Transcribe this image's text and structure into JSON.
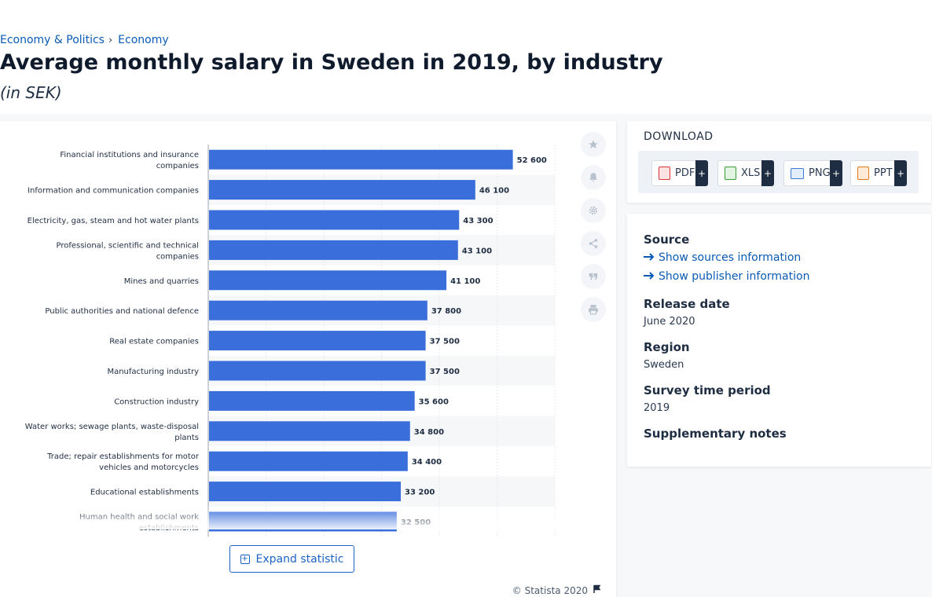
{
  "breadcrumb": {
    "item1": "Economy & Politics",
    "separator": "›",
    "item2": "Economy"
  },
  "title": "Average monthly salary in Sweden in 2019, by industry",
  "subtitle": "(in SEK)",
  "chart_data": {
    "type": "bar",
    "orientation": "horizontal",
    "categories": [
      [
        "Financial institutions and insurance",
        "companies"
      ],
      [
        "Information and communication companies"
      ],
      [
        "Electricity, gas, steam and hot water plants"
      ],
      [
        "Professional, scientific and technical",
        "companies"
      ],
      [
        "Mines and quarries"
      ],
      [
        "Public authorities and national defence"
      ],
      [
        "Real estate companies"
      ],
      [
        "Manufacturing industry"
      ],
      [
        "Construction industry"
      ],
      [
        "Water works; sewage plants, waste-disposal",
        "plants"
      ],
      [
        "Trade; repair establishments for motor",
        "vehicles and motorcycles"
      ],
      [
        "Educational establishments"
      ],
      [
        "Human health and social work",
        "establishments"
      ]
    ],
    "values": [
      52600,
      46100,
      43300,
      43100,
      41100,
      37800,
      37500,
      37500,
      35600,
      34800,
      34400,
      33200,
      32500
    ],
    "data_labels": [
      "52 600",
      "46 100",
      "43 300",
      "43 100",
      "41 100",
      "37 800",
      "37 500",
      "37 500",
      "35 600",
      "34 800",
      "34 400",
      "33 200",
      "32 500"
    ],
    "xlim": [
      0,
      60000
    ],
    "grid": true,
    "bar_color": "#3a6fdb"
  },
  "expand_label": "Expand statistic",
  "copyright": "© Statista 2020",
  "download": {
    "title": "DOWNLOAD",
    "pdf": "PDF",
    "xls": "XLS",
    "png": "PNG",
    "ppt": "PPT",
    "plus": "+"
  },
  "info": {
    "source_label": "Source",
    "sources_link": "Show sources information",
    "publisher_link": "Show publisher information",
    "release_label": "Release date",
    "release_value": "June 2020",
    "region_label": "Region",
    "region_value": "Sweden",
    "period_label": "Survey time period",
    "period_value": "2019",
    "notes_label": "Supplementary notes"
  },
  "tools": [
    "star-icon",
    "bell-icon",
    "gear-icon",
    "share-icon",
    "quote-icon",
    "print-icon"
  ]
}
